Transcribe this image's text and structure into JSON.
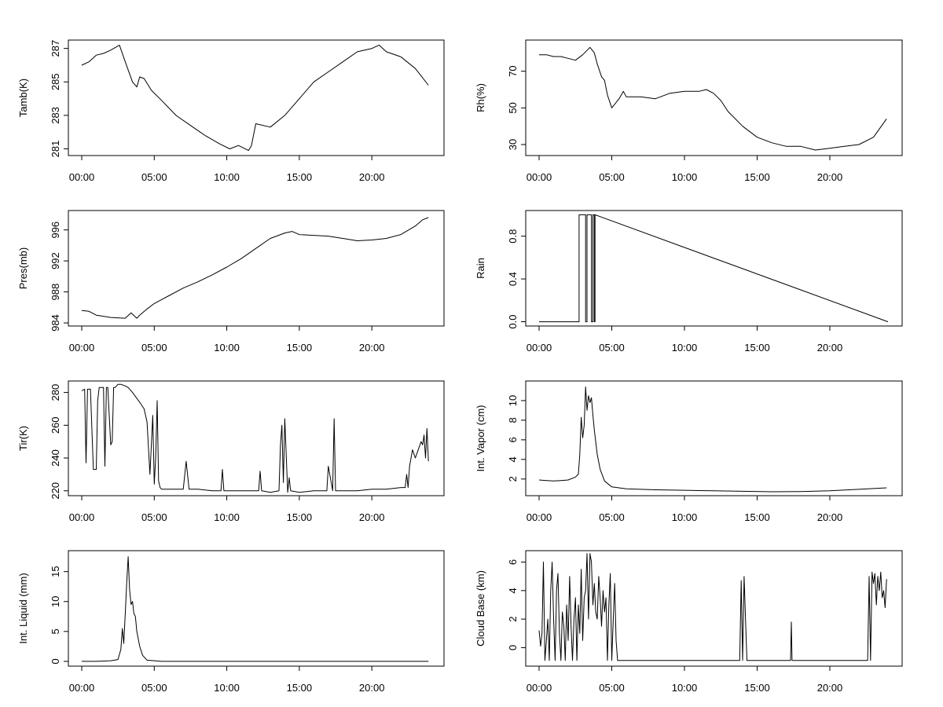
{
  "chart_data": [
    {
      "type": "line",
      "panel": "tamb",
      "ylabel": "Tamb(K)",
      "xlim": [
        0,
        24
      ],
      "ylim": [
        280.6,
        287.5
      ],
      "x_ticks": [
        0,
        5,
        10,
        15,
        20
      ],
      "x_tick_labels": [
        "00:00",
        "05:00",
        "10:00",
        "15:00",
        "20:00"
      ],
      "y_ticks": [
        281,
        283,
        285,
        287
      ],
      "y_tick_labels": [
        "281",
        "283",
        "285",
        "287"
      ],
      "series": [
        {
          "x": [
            0.0,
            0.5,
            1.0,
            1.5,
            2.0,
            2.6,
            3.0,
            3.5,
            3.8,
            4.0,
            4.3,
            4.8,
            5.5,
            6.5,
            7.5,
            8.5,
            9.5,
            10.2,
            10.8,
            11.5,
            11.7,
            12.0,
            13.0,
            14.0,
            15.0,
            16.0,
            17.0,
            18.0,
            19.0,
            20.0,
            20.5,
            21.0,
            22.0,
            23.0,
            23.9
          ],
          "y": [
            286.0,
            286.2,
            286.6,
            286.7,
            286.9,
            287.2,
            286.2,
            285.0,
            284.7,
            285.3,
            285.2,
            284.5,
            283.9,
            283.0,
            282.4,
            281.8,
            281.3,
            281.0,
            281.2,
            280.9,
            281.2,
            282.5,
            282.3,
            283.0,
            284.0,
            285.0,
            285.6,
            286.2,
            286.8,
            287.0,
            287.2,
            286.8,
            286.5,
            285.8,
            284.8
          ]
        }
      ]
    },
    {
      "type": "line",
      "panel": "rh",
      "ylabel": "Rh(%)",
      "xlim": [
        0,
        24
      ],
      "ylim": [
        24,
        87
      ],
      "x_ticks": [
        0,
        5,
        10,
        15,
        20
      ],
      "x_tick_labels": [
        "00:00",
        "05:00",
        "10:00",
        "15:00",
        "20:00"
      ],
      "y_ticks": [
        30,
        50,
        70
      ],
      "y_tick_labels": [
        "30",
        "50",
        "70"
      ],
      "series": [
        {
          "x": [
            0.0,
            0.5,
            1.0,
            1.5,
            2.0,
            2.5,
            3.0,
            3.5,
            3.8,
            4.0,
            4.3,
            4.5,
            4.7,
            5.0,
            5.5,
            5.8,
            6.0,
            7.0,
            8.0,
            9.0,
            10.0,
            11.0,
            11.5,
            12.0,
            12.5,
            13.0,
            14.0,
            15.0,
            16.0,
            17.0,
            18.0,
            19.0,
            20.0,
            21.0,
            22.0,
            23.0,
            23.9
          ],
          "y": [
            79,
            79,
            78,
            78,
            77,
            76,
            79,
            83,
            80,
            74,
            67,
            65,
            57,
            50,
            55,
            59,
            56,
            56,
            55,
            58,
            59,
            59,
            60,
            58,
            54,
            48,
            40,
            34,
            31,
            29,
            29,
            27,
            28,
            29,
            30,
            34,
            44
          ]
        }
      ]
    },
    {
      "type": "line",
      "panel": "pres",
      "ylabel": "Pres(mb)",
      "xlim": [
        0,
        24
      ],
      "ylim": [
        983.6,
        998.5
      ],
      "x_ticks": [
        0,
        5,
        10,
        15,
        20
      ],
      "x_tick_labels": [
        "00:00",
        "05:00",
        "10:00",
        "15:00",
        "20:00"
      ],
      "y_ticks": [
        984,
        988,
        992,
        996
      ],
      "y_tick_labels": [
        "984",
        "988",
        "992",
        "996"
      ],
      "series": [
        {
          "x": [
            0.0,
            0.5,
            1.0,
            2.0,
            3.0,
            3.4,
            3.8,
            4.0,
            4.5,
            5.0,
            6.0,
            7.0,
            8.0,
            9.0,
            10.0,
            11.0,
            12.0,
            13.0,
            14.0,
            14.5,
            15.0,
            16.0,
            17.0,
            18.0,
            19.0,
            20.0,
            21.0,
            22.0,
            23.0,
            23.5,
            23.9
          ],
          "y": [
            985.6,
            985.5,
            985.0,
            984.7,
            984.6,
            985.3,
            984.6,
            985.0,
            985.8,
            986.5,
            987.5,
            988.5,
            989.3,
            990.2,
            991.2,
            992.3,
            993.6,
            994.9,
            995.6,
            995.8,
            995.4,
            995.3,
            995.2,
            994.9,
            994.6,
            994.7,
            994.9,
            995.4,
            996.5,
            997.3,
            997.6
          ]
        }
      ]
    },
    {
      "type": "line",
      "panel": "rain",
      "ylabel": "Rain",
      "xlim": [
        0,
        24
      ],
      "ylim": [
        -0.04,
        1.04
      ],
      "x_ticks": [
        0,
        5,
        10,
        15,
        20
      ],
      "x_tick_labels": [
        "00:00",
        "05:00",
        "10:00",
        "15:00",
        "20:00"
      ],
      "y_ticks": [
        0.0,
        0.4,
        0.8
      ],
      "y_tick_labels": [
        "0.0",
        "0.4",
        "0.8"
      ],
      "series": [
        {
          "x": [
            0.0,
            2.75,
            2.75,
            3.2,
            3.2,
            3.3,
            3.3,
            3.6,
            3.6,
            3.7,
            3.7,
            3.8,
            3.8,
            3.85,
            3.85,
            24.0
          ],
          "y": [
            0,
            0,
            1,
            1,
            0,
            0,
            1,
            1,
            0,
            0,
            1,
            1,
            0,
            0,
            1,
            0
          ]
        }
      ]
    },
    {
      "type": "line",
      "panel": "tir",
      "ylabel": "Tir(K)",
      "xlim": [
        0,
        24
      ],
      "ylim": [
        217,
        287
      ],
      "x_ticks": [
        0,
        5,
        10,
        15,
        20
      ],
      "x_tick_labels": [
        "00:00",
        "05:00",
        "10:00",
        "15:00",
        "20:00"
      ],
      "y_ticks": [
        220,
        240,
        260,
        280
      ],
      "y_tick_labels": [
        "220",
        "240",
        "260",
        "280"
      ],
      "series": [
        {
          "x": [
            0.0,
            0.2,
            0.3,
            0.4,
            0.6,
            0.8,
            1.0,
            1.1,
            1.2,
            1.3,
            1.4,
            1.5,
            1.6,
            1.7,
            1.8,
            2.0,
            2.1,
            2.2,
            2.3,
            2.5,
            2.7,
            3.0,
            3.2,
            3.5,
            4.0,
            4.3,
            4.5,
            4.7,
            4.9,
            5.0,
            5.1,
            5.2,
            5.3,
            5.4,
            5.5,
            6.0,
            6.5,
            7.0,
            7.2,
            7.4,
            8.0,
            9.0,
            9.6,
            9.7,
            9.8,
            10.0,
            11.0,
            12.2,
            12.3,
            12.4,
            13.0,
            13.6,
            13.7,
            13.8,
            13.9,
            14.0,
            14.2,
            14.3,
            14.4,
            15.0,
            16.0,
            16.9,
            17.0,
            17.3,
            17.4,
            17.5,
            18.0,
            19.0,
            20.0,
            21.0,
            22.0,
            22.3,
            22.4,
            22.5,
            22.6,
            22.8,
            23.0,
            23.2,
            23.4,
            23.5,
            23.6,
            23.7,
            23.8,
            23.9
          ],
          "y": [
            281,
            282,
            237,
            282,
            282,
            233,
            233,
            275,
            283,
            283,
            283,
            283,
            235,
            283,
            283,
            248,
            250,
            283,
            283,
            285,
            285,
            284,
            283,
            280,
            274,
            270,
            262,
            230,
            266,
            224,
            240,
            275,
            226,
            222,
            221,
            221,
            221,
            221,
            238,
            221,
            221,
            220,
            220,
            233,
            220,
            220,
            220,
            220,
            232,
            220,
            219,
            220,
            248,
            260,
            225,
            264,
            219,
            228,
            220,
            219,
            220,
            220,
            235,
            220,
            264,
            220,
            220,
            220,
            221,
            221,
            222,
            222,
            230,
            222,
            235,
            245,
            240,
            245,
            250,
            248,
            254,
            240,
            258,
            238
          ]
        }
      ]
    },
    {
      "type": "line",
      "panel": "vapor",
      "ylabel": "Int. Vapor (cm)",
      "xlim": [
        0,
        24
      ],
      "ylim": [
        0.3,
        12
      ],
      "x_ticks": [
        0,
        5,
        10,
        15,
        20
      ],
      "x_tick_labels": [
        "00:00",
        "05:00",
        "10:00",
        "15:00",
        "20:00"
      ],
      "y_ticks": [
        2,
        4,
        6,
        8,
        10
      ],
      "y_tick_labels": [
        "2",
        "4",
        "6",
        "8",
        "10"
      ],
      "series": [
        {
          "x": [
            0.0,
            0.5,
            1.0,
            1.5,
            2.0,
            2.5,
            2.7,
            2.8,
            2.9,
            3.0,
            3.1,
            3.2,
            3.3,
            3.4,
            3.5,
            3.6,
            3.7,
            3.8,
            4.0,
            4.2,
            4.5,
            5.0,
            6.0,
            8.0,
            10.0,
            12.0,
            14.0,
            16.0,
            18.0,
            20.0,
            22.0,
            23.9
          ],
          "y": [
            1.9,
            1.85,
            1.8,
            1.85,
            1.9,
            2.2,
            2.5,
            4.5,
            8.3,
            6.2,
            7.5,
            11.4,
            9.0,
            10.5,
            9.8,
            10.3,
            8.5,
            7.0,
            4.5,
            3.0,
            1.8,
            1.2,
            1.0,
            0.9,
            0.85,
            0.8,
            0.75,
            0.7,
            0.72,
            0.8,
            0.95,
            1.1
          ]
        }
      ]
    },
    {
      "type": "line",
      "panel": "liquid",
      "ylabel": "Int. Liquid (mm)",
      "xlim": [
        0,
        24
      ],
      "ylim": [
        -0.8,
        18.5
      ],
      "x_ticks": [
        0,
        5,
        10,
        15,
        20
      ],
      "x_tick_labels": [
        "00:00",
        "05:00",
        "10:00",
        "15:00",
        "20:00"
      ],
      "y_ticks": [
        0,
        5,
        10,
        15
      ],
      "y_tick_labels": [
        "0",
        "5",
        "10",
        "15"
      ],
      "series": [
        {
          "x": [
            0.0,
            1.0,
            2.0,
            2.5,
            2.7,
            2.8,
            2.9,
            3.0,
            3.1,
            3.2,
            3.3,
            3.4,
            3.5,
            3.6,
            3.7,
            3.8,
            4.0,
            4.2,
            4.5,
            5.0,
            5.5,
            6.0,
            23.9
          ],
          "y": [
            0,
            0,
            0.1,
            0.3,
            2.0,
            5.5,
            3.0,
            8.0,
            13.0,
            17.5,
            12.0,
            9.5,
            10.0,
            8.0,
            7.5,
            5.0,
            2.5,
            1.0,
            0.2,
            0.1,
            0,
            0,
            0
          ]
        }
      ]
    },
    {
      "type": "line",
      "panel": "cloud",
      "ylabel": "Cloud Base (km)",
      "xlim": [
        0,
        24
      ],
      "ylim": [
        -1.3,
        6.8
      ],
      "x_ticks": [
        0,
        5,
        10,
        15,
        20
      ],
      "x_tick_labels": [
        "00:00",
        "05:00",
        "10:00",
        "15:00",
        "20:00"
      ],
      "y_ticks": [
        0,
        2,
        4,
        6
      ],
      "y_tick_labels": [
        "0",
        "2",
        "4",
        "6"
      ],
      "series": [
        {
          "x": [
            0.0,
            0.1,
            0.2,
            0.3,
            0.4,
            0.5,
            0.6,
            0.7,
            0.8,
            0.9,
            1.0,
            1.1,
            1.2,
            1.3,
            1.4,
            1.5,
            1.6,
            1.7,
            1.8,
            1.9,
            2.0,
            2.1,
            2.2,
            2.3,
            2.4,
            2.5,
            2.6,
            2.7,
            2.8,
            2.9,
            3.0,
            3.1,
            3.2,
            3.3,
            3.4,
            3.5,
            3.6,
            3.7,
            3.8,
            3.9,
            4.0,
            4.1,
            4.2,
            4.3,
            4.4,
            4.5,
            4.6,
            4.7,
            4.8,
            4.9,
            5.0,
            5.1,
            5.2,
            5.3,
            5.4,
            5.5,
            6.0,
            8.0,
            10.0,
            12.0,
            13.8,
            13.9,
            14.0,
            14.1,
            14.2,
            14.3,
            16.0,
            17.3,
            17.35,
            17.4,
            19.0,
            22.0,
            22.6,
            22.7,
            22.8,
            22.9,
            23.0,
            23.1,
            23.2,
            23.3,
            23.4,
            23.5,
            23.6,
            23.7,
            23.8,
            23.9
          ],
          "y": [
            1.2,
            0.1,
            1.0,
            6.0,
            -0.9,
            0.5,
            2.0,
            -0.9,
            4.0,
            6.0,
            2.0,
            -0.9,
            4.0,
            5.2,
            1.0,
            -0.9,
            2.5,
            1.5,
            -0.9,
            3.0,
            0.5,
            5.0,
            1.5,
            -0.9,
            2.0,
            3.5,
            -0.9,
            3.0,
            1.0,
            5.5,
            0.5,
            3.5,
            4.0,
            6.6,
            2.0,
            6.6,
            6.0,
            3.0,
            4.5,
            2.5,
            2.0,
            5.0,
            3.5,
            1.5,
            4.0,
            2.5,
            3.5,
            -0.9,
            3.0,
            5.2,
            -0.9,
            2.0,
            4.5,
            0.5,
            -0.9,
            -0.9,
            -0.9,
            -0.9,
            -0.9,
            -0.9,
            -0.9,
            4.7,
            -0.9,
            5.0,
            2.0,
            -0.9,
            -0.9,
            -0.9,
            1.8,
            -0.9,
            -0.9,
            -0.9,
            -0.9,
            5.0,
            -0.9,
            5.3,
            4.5,
            5.2,
            3.0,
            5.0,
            4.0,
            5.3,
            3.5,
            4.0,
            2.8,
            4.8
          ]
        }
      ]
    }
  ]
}
